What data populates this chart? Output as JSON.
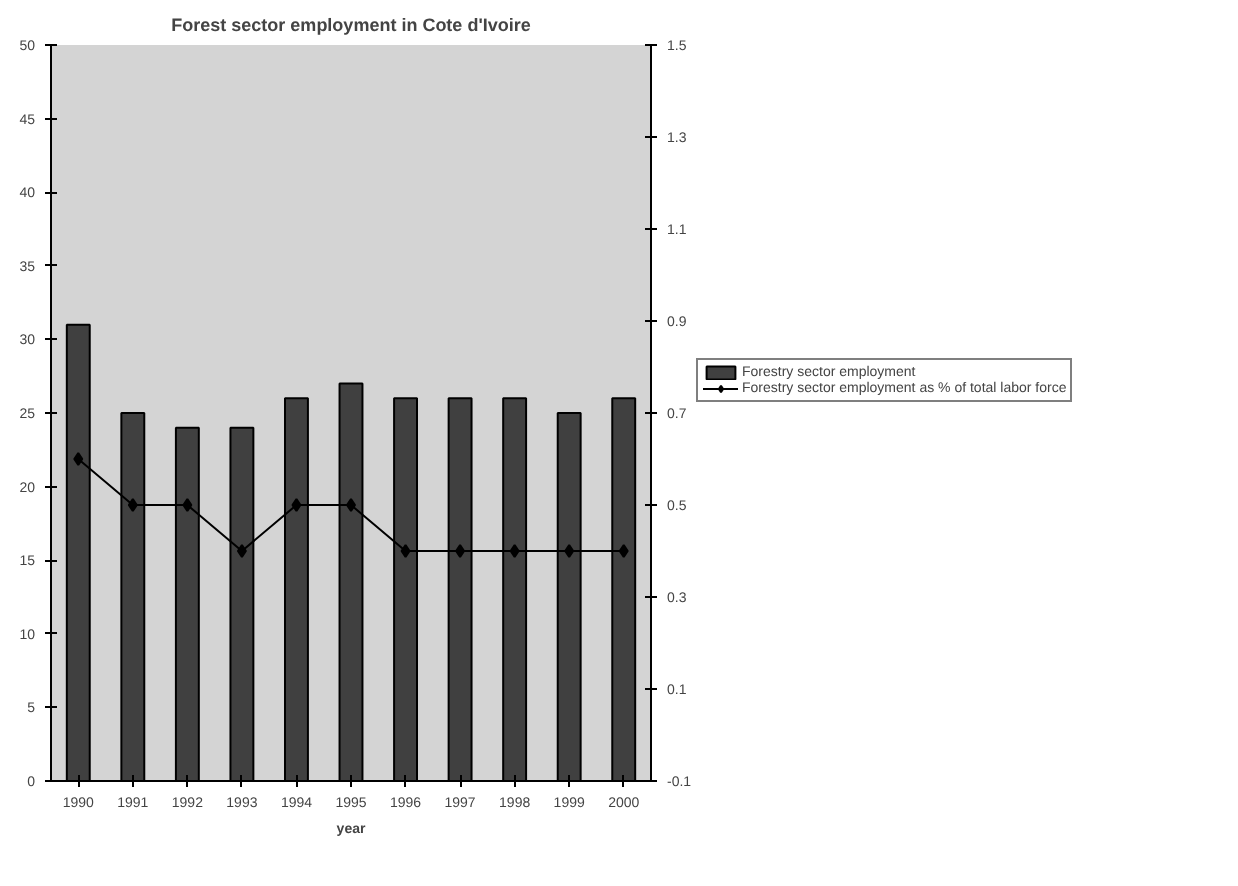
{
  "chart_data": {
    "type": "bar",
    "title": "Forest sector employment in Cote d'Ivoire",
    "xlabel": "year",
    "categories": [
      "1990",
      "1991",
      "1992",
      "1993",
      "1994",
      "1995",
      "1996",
      "1997",
      "1998",
      "1999",
      "2000"
    ],
    "series": [
      {
        "name": "Forestry sector employment",
        "color": "#404040",
        "values": [
          31,
          25,
          24,
          24,
          26,
          27,
          26,
          26,
          26,
          25,
          26
        ]
      },
      {
        "name": "Forestry sector employment as % of total labor force",
        "type": "line",
        "axis": "y2",
        "color": "#000000",
        "marker": "diamond",
        "values": [
          0.6,
          0.5,
          0.5,
          0.4,
          0.5,
          0.5,
          0.4,
          0.4,
          0.4,
          0.4,
          0.4
        ]
      }
    ],
    "ylim": [
      0,
      50
    ],
    "yticks": [
      0,
      5,
      10,
      15,
      20,
      25,
      30,
      35,
      40,
      45,
      50
    ],
    "y2lim": [
      -0.1,
      1.5
    ],
    "y2ticks": [
      -0.1,
      0.1,
      0.3,
      0.5,
      0.7,
      0.9,
      1.1,
      1.3,
      1.5
    ],
    "grid": false,
    "legend": "right"
  }
}
